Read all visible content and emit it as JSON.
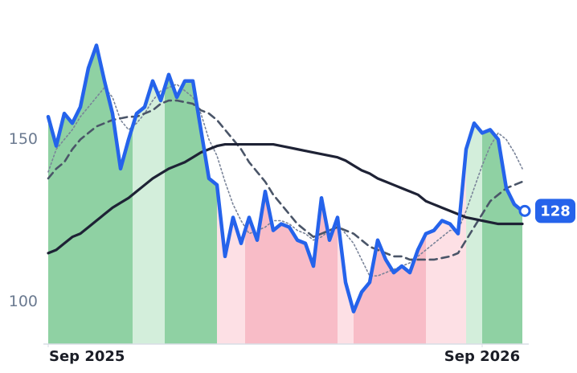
{
  "chart_data": {
    "type": "line",
    "xlim": [
      0,
      59
    ],
    "xticks": [
      {
        "value": 0,
        "label": "Sep 2025"
      },
      {
        "value": 54,
        "label": "Sep 2026"
      }
    ],
    "ylim": [
      87,
      188
    ],
    "yticks": [
      100,
      150
    ],
    "grid": false,
    "series": [
      {
        "color": "#2563eb",
        "dash": "solid",
        "values": [
          157,
          148,
          158,
          155,
          160,
          172,
          179,
          168,
          158,
          141,
          150,
          158,
          160,
          168,
          162,
          170,
          163,
          168,
          168,
          153,
          138,
          136,
          114,
          126,
          118,
          126,
          119,
          134,
          122,
          124,
          123,
          119,
          118,
          111,
          132,
          119,
          126,
          106,
          97,
          103,
          106,
          119,
          113,
          109,
          111,
          109,
          116,
          121,
          122,
          125,
          124,
          121,
          147,
          155,
          152,
          153,
          150,
          135,
          130,
          128
        ]
      },
      {
        "color": "#1e2235",
        "dash": "solid",
        "values": [
          115,
          116,
          118,
          120,
          121,
          123,
          125,
          127,
          129,
          130.5,
          132,
          134,
          136,
          138,
          139.5,
          141,
          142,
          143,
          144.5,
          146,
          147,
          148,
          148.5,
          148.5,
          148.5,
          148.5,
          148.5,
          148.5,
          148.5,
          148,
          147.5,
          147,
          146.5,
          146,
          145.5,
          145,
          144.5,
          143.5,
          142,
          140.5,
          139.5,
          138,
          137,
          136,
          135,
          134,
          133,
          131,
          130,
          129,
          128,
          127,
          126,
          125.5,
          125,
          124.5,
          124,
          124,
          124,
          124
        ]
      },
      {
        "color": "#4a5568",
        "dash": "dashed",
        "values": [
          138,
          141,
          143,
          147,
          150,
          152,
          154,
          155,
          156,
          156.5,
          157,
          157,
          158,
          159,
          161,
          162,
          162,
          161.5,
          161,
          159,
          158,
          156,
          153,
          150,
          147,
          143,
          140,
          137,
          133,
          130,
          127,
          124,
          122,
          120,
          121,
          122,
          123,
          122,
          121,
          119,
          117,
          116,
          115,
          114,
          114,
          113,
          113,
          113,
          113,
          113.5,
          114,
          115,
          119,
          123,
          127,
          131,
          133,
          135,
          136,
          137
        ]
      },
      {
        "color": "#7a8499",
        "dash": "dotted",
        "values": [
          140,
          147,
          150,
          153,
          157,
          160,
          163,
          166,
          163,
          156,
          153,
          155,
          158,
          162,
          165,
          166,
          167,
          165,
          163,
          158,
          150,
          145,
          137,
          130,
          125,
          121,
          122,
          123,
          125,
          125,
          124,
          122,
          121,
          119,
          120,
          122,
          124,
          121,
          118,
          113,
          108,
          108,
          109,
          110,
          111,
          112,
          114,
          116,
          118,
          120,
          122,
          122,
          128,
          135,
          142,
          148,
          152,
          150,
          146,
          141
        ]
      }
    ],
    "bands": [
      {
        "start": 0,
        "end": 10.5,
        "color": "#8fd1a3"
      },
      {
        "start": 10.5,
        "end": 14.5,
        "color": "#d3eedb"
      },
      {
        "start": 14.5,
        "end": 21,
        "color": "#8fd1a3"
      },
      {
        "start": 21,
        "end": 24.5,
        "color": "#fde0e5"
      },
      {
        "start": 24.5,
        "end": 36,
        "color": "#f8bcc7"
      },
      {
        "start": 36,
        "end": 38,
        "color": "#fde0e5"
      },
      {
        "start": 38,
        "end": 47,
        "color": "#f8bcc7"
      },
      {
        "start": 47,
        "end": 52,
        "color": "#fde0e5"
      },
      {
        "start": 52,
        "end": 54,
        "color": "#d3eedb"
      },
      {
        "start": 54,
        "end": 59,
        "color": "#8fd1a3"
      }
    ]
  }
}
